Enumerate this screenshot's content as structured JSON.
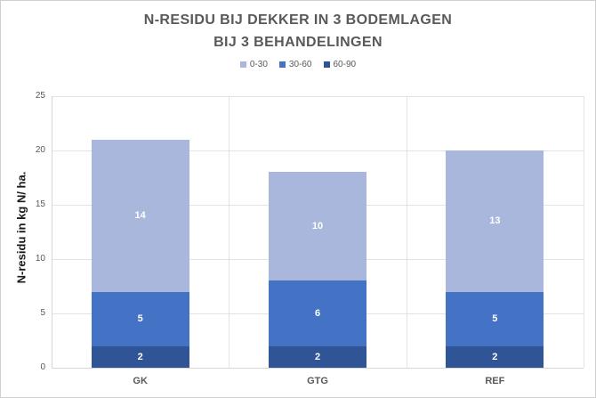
{
  "title": {
    "line1": "N-RESIDU BIJ DEKKER IN 3 BODEMLAGEN",
    "line2": "BIJ 3 BEHANDELINGEN"
  },
  "chart_data": {
    "type": "bar",
    "stacked": true,
    "title": "N-RESIDU BIJ DEKKER IN 3 BODEMLAGEN BIJ 3 BEHANDELINGEN",
    "categories": [
      "GK",
      "GTG",
      "REF"
    ],
    "series": [
      {
        "name": "60-90",
        "color": "#2F5597",
        "values": [
          2,
          2,
          2
        ]
      },
      {
        "name": "30-60",
        "color": "#4472C4",
        "values": [
          5,
          6,
          5
        ]
      },
      {
        "name": "0-30",
        "color": "#AAB7DC",
        "values": [
          14,
          10,
          13
        ]
      }
    ],
    "totals": [
      21,
      18,
      20
    ],
    "xlabel": "",
    "ylabel": "N-residu in kg N/ ha.",
    "ylim": [
      0,
      25
    ],
    "yticks": [
      0,
      5,
      10,
      15,
      20,
      25
    ],
    "grid": true,
    "legend_position": "top",
    "value_labels_color": "#ffffff"
  },
  "colors": {
    "title_text": "#595959",
    "tick_text": "#595959",
    "axis_line": "#d6d6d6",
    "gridline": "#e3e3e3",
    "page_border": "#cfcfcf"
  }
}
